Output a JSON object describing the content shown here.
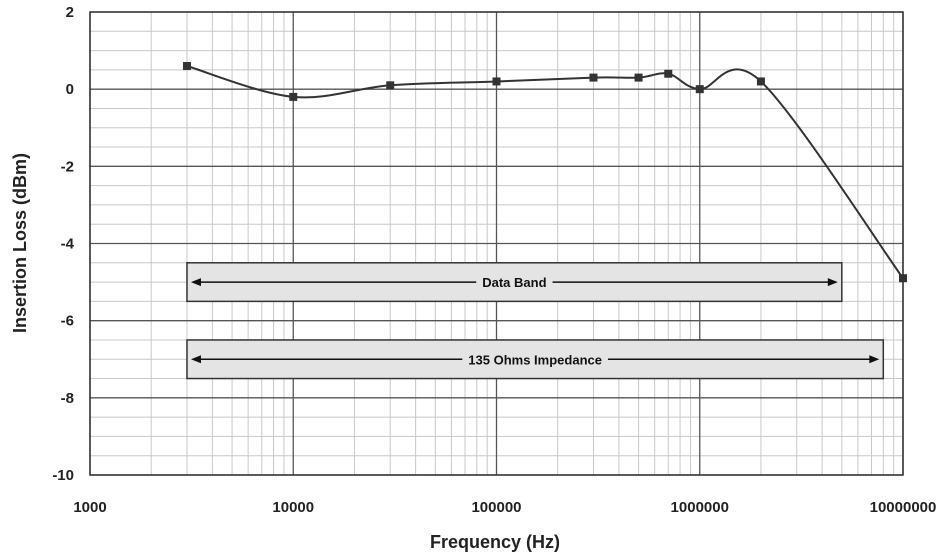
{
  "chart_data": {
    "type": "line",
    "title": "",
    "xlabel": "Frequency (Hz)",
    "ylabel": "Insertion Loss (dBm)",
    "x_scale": "log",
    "xlim": [
      1000,
      10000000
    ],
    "ylim": [
      -10,
      2
    ],
    "grid": true,
    "x_ticks": [
      "1000",
      "10000",
      "100000",
      "1000000",
      "10000000"
    ],
    "y_ticks": [
      "2",
      "0",
      "-2",
      "-4",
      "-6",
      "-8",
      "-10"
    ],
    "series": [
      {
        "x": [
          3000,
          10000,
          30000,
          100000,
          300000,
          500000,
          700000,
          1000000,
          2000000,
          10000000
        ],
        "y": [
          0.6,
          -0.2,
          0.1,
          0.2,
          0.3,
          0.3,
          0.4,
          0.0,
          0.2,
          -4.9
        ]
      }
    ],
    "bands": [
      {
        "label": "Data Band",
        "x_start": 3000,
        "x_end": 5000000,
        "y_top": -4.5,
        "y_bottom": -5.5
      },
      {
        "label": "135 Ohms Impedance",
        "x_start": 3000,
        "x_end": 8000000,
        "y_top": -6.5,
        "y_bottom": -7.5
      }
    ],
    "colors": {
      "line": "#333333",
      "marker": "#333333",
      "grid_major": "#555555",
      "grid_minor": "#c8c8c8",
      "band_fill": "#e4e4e4"
    }
  }
}
